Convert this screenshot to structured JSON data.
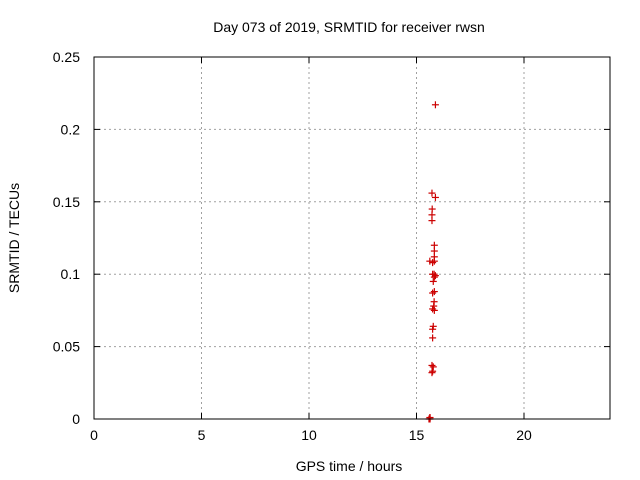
{
  "chart_data": {
    "type": "scatter",
    "title": "Day 073 of 2019, SRMTID for receiver rwsn",
    "xlabel": "GPS time / hours",
    "ylabel": "SRMTID / TECUs",
    "xlim": [
      0,
      24
    ],
    "ylim": [
      0,
      0.25
    ],
    "xticks": [
      0,
      5,
      10,
      15,
      20
    ],
    "xtick_labels": [
      "0",
      "5",
      "10",
      "15",
      "20"
    ],
    "yticks": [
      0,
      0.05,
      0.1,
      0.15,
      0.2,
      0.25
    ],
    "ytick_labels": [
      "0",
      "0.05",
      "0.1",
      "0.15",
      "0.2",
      "0.25"
    ],
    "grid": true,
    "marker": "plus",
    "color": "#cc0000",
    "series": [
      {
        "x": [
          15.88,
          15.72,
          15.88,
          15.73,
          15.72,
          15.72,
          15.83,
          15.83,
          15.83,
          15.83,
          15.62,
          15.75,
          15.82,
          15.75,
          15.83,
          15.88,
          15.78,
          15.83,
          15.75,
          15.82,
          15.8,
          15.75,
          15.83,
          15.78,
          15.75,
          15.75,
          15.72,
          15.78,
          15.75,
          15.72,
          15.62,
          15.58,
          15.63,
          15.63
        ],
        "y": [
          0.217,
          0.156,
          0.153,
          0.145,
          0.141,
          0.137,
          0.12,
          0.116,
          0.112,
          0.109,
          0.109,
          0.108,
          0.1,
          0.1,
          0.098,
          0.099,
          0.095,
          0.088,
          0.087,
          0.081,
          0.078,
          0.076,
          0.075,
          0.064,
          0.062,
          0.056,
          0.037,
          0.036,
          0.033,
          0.032,
          0.001,
          0.0,
          0.001,
          0.0
        ]
      }
    ]
  }
}
